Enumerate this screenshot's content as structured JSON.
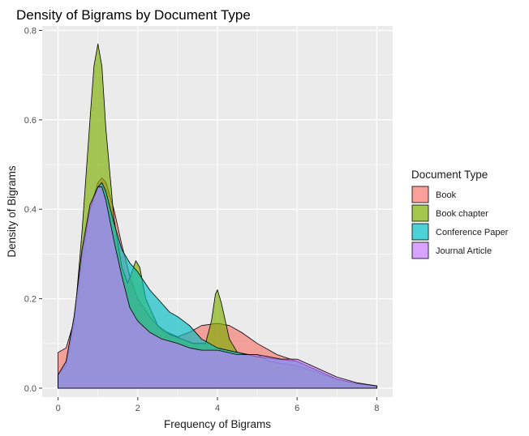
{
  "chart_data": {
    "type": "area",
    "title": "Density of Bigrams by Document Type",
    "xlabel": "Frequency of Bigrams",
    "ylabel": "Density of Bigrams",
    "xlim": [
      -0.4,
      8.4
    ],
    "ylim": [
      -0.02,
      0.81
    ],
    "x_ticks": [
      0,
      2,
      4,
      6,
      8
    ],
    "x_tick_labels": [
      "0",
      "2",
      "4",
      "6",
      "8"
    ],
    "y_ticks": [
      0,
      0.2,
      0.4,
      0.6,
      0.8
    ],
    "y_tick_labels": [
      "0.0",
      "0.2",
      "0.4",
      "0.6",
      "0.8"
    ],
    "grid": true,
    "legend": {
      "title": "Document Type",
      "placement": "right"
    },
    "series": [
      {
        "name": "Book",
        "color": "#F8766D",
        "points": [
          [
            0,
            0.08
          ],
          [
            0.2,
            0.09
          ],
          [
            0.4,
            0.15
          ],
          [
            0.6,
            0.27
          ],
          [
            0.8,
            0.4
          ],
          [
            1.0,
            0.46
          ],
          [
            1.1,
            0.47
          ],
          [
            1.2,
            0.46
          ],
          [
            1.4,
            0.4
          ],
          [
            1.6,
            0.32
          ],
          [
            1.8,
            0.25
          ],
          [
            2.0,
            0.2
          ],
          [
            2.3,
            0.16
          ],
          [
            2.6,
            0.13
          ],
          [
            3.0,
            0.115
          ],
          [
            3.3,
            0.125
          ],
          [
            3.6,
            0.14
          ],
          [
            4.0,
            0.145
          ],
          [
            4.3,
            0.14
          ],
          [
            4.6,
            0.125
          ],
          [
            5.0,
            0.1
          ],
          [
            5.5,
            0.075
          ],
          [
            6.0,
            0.06
          ],
          [
            6.5,
            0.04
          ],
          [
            7.0,
            0.02
          ],
          [
            7.5,
            0.01
          ],
          [
            8.0,
            0.005
          ]
        ]
      },
      {
        "name": "Book chapter",
        "color": "#7CAE00",
        "points": [
          [
            0,
            0.03
          ],
          [
            0.2,
            0.05
          ],
          [
            0.4,
            0.14
          ],
          [
            0.6,
            0.35
          ],
          [
            0.8,
            0.6
          ],
          [
            0.9,
            0.72
          ],
          [
            1.0,
            0.77
          ],
          [
            1.1,
            0.72
          ],
          [
            1.2,
            0.58
          ],
          [
            1.4,
            0.38
          ],
          [
            1.6,
            0.27
          ],
          [
            1.75,
            0.235
          ],
          [
            1.85,
            0.26
          ],
          [
            1.95,
            0.285
          ],
          [
            2.05,
            0.27
          ],
          [
            2.2,
            0.2
          ],
          [
            2.5,
            0.14
          ],
          [
            2.8,
            0.12
          ],
          [
            3.1,
            0.11
          ],
          [
            3.4,
            0.1
          ],
          [
            3.7,
            0.1
          ],
          [
            3.85,
            0.15
          ],
          [
            3.95,
            0.21
          ],
          [
            4.0,
            0.22
          ],
          [
            4.1,
            0.19
          ],
          [
            4.3,
            0.11
          ],
          [
            4.5,
            0.08
          ],
          [
            4.8,
            0.075
          ],
          [
            5.0,
            0.075
          ],
          [
            5.3,
            0.06
          ],
          [
            5.6,
            0.055
          ],
          [
            6.0,
            0.05
          ],
          [
            6.5,
            0.035
          ],
          [
            7.0,
            0.02
          ],
          [
            7.5,
            0.01
          ],
          [
            8.0,
            0.005
          ]
        ]
      },
      {
        "name": "Conference Paper",
        "color": "#00BFC4",
        "points": [
          [
            0,
            0.03
          ],
          [
            0.2,
            0.06
          ],
          [
            0.4,
            0.16
          ],
          [
            0.6,
            0.3
          ],
          [
            0.8,
            0.4
          ],
          [
            1.0,
            0.45
          ],
          [
            1.1,
            0.46
          ],
          [
            1.2,
            0.44
          ],
          [
            1.4,
            0.37
          ],
          [
            1.6,
            0.31
          ],
          [
            1.8,
            0.28
          ],
          [
            2.0,
            0.26
          ],
          [
            2.3,
            0.22
          ],
          [
            2.6,
            0.19
          ],
          [
            2.8,
            0.17
          ],
          [
            3.0,
            0.16
          ],
          [
            3.3,
            0.14
          ],
          [
            3.6,
            0.11
          ],
          [
            4.0,
            0.09
          ],
          [
            4.5,
            0.08
          ],
          [
            5.0,
            0.07
          ],
          [
            5.5,
            0.065
          ],
          [
            6.0,
            0.06
          ],
          [
            6.5,
            0.04
          ],
          [
            7.0,
            0.02
          ],
          [
            7.5,
            0.01
          ],
          [
            8.0,
            0.005
          ]
        ]
      },
      {
        "name": "Journal Article",
        "color": "#C77CFF",
        "points": [
          [
            0,
            0.03
          ],
          [
            0.2,
            0.06
          ],
          [
            0.4,
            0.16
          ],
          [
            0.6,
            0.31
          ],
          [
            0.8,
            0.41
          ],
          [
            1.0,
            0.45
          ],
          [
            1.1,
            0.45
          ],
          [
            1.2,
            0.42
          ],
          [
            1.4,
            0.33
          ],
          [
            1.6,
            0.25
          ],
          [
            1.8,
            0.18
          ],
          [
            2.0,
            0.15
          ],
          [
            2.3,
            0.125
          ],
          [
            2.6,
            0.11
          ],
          [
            3.0,
            0.1
          ],
          [
            3.3,
            0.09
          ],
          [
            3.6,
            0.085
          ],
          [
            4.0,
            0.085
          ],
          [
            4.5,
            0.075
          ],
          [
            5.0,
            0.075
          ],
          [
            5.3,
            0.07
          ],
          [
            5.6,
            0.065
          ],
          [
            6.0,
            0.065
          ],
          [
            6.5,
            0.045
          ],
          [
            7.0,
            0.025
          ],
          [
            7.5,
            0.012
          ],
          [
            8.0,
            0.005
          ]
        ]
      }
    ]
  }
}
